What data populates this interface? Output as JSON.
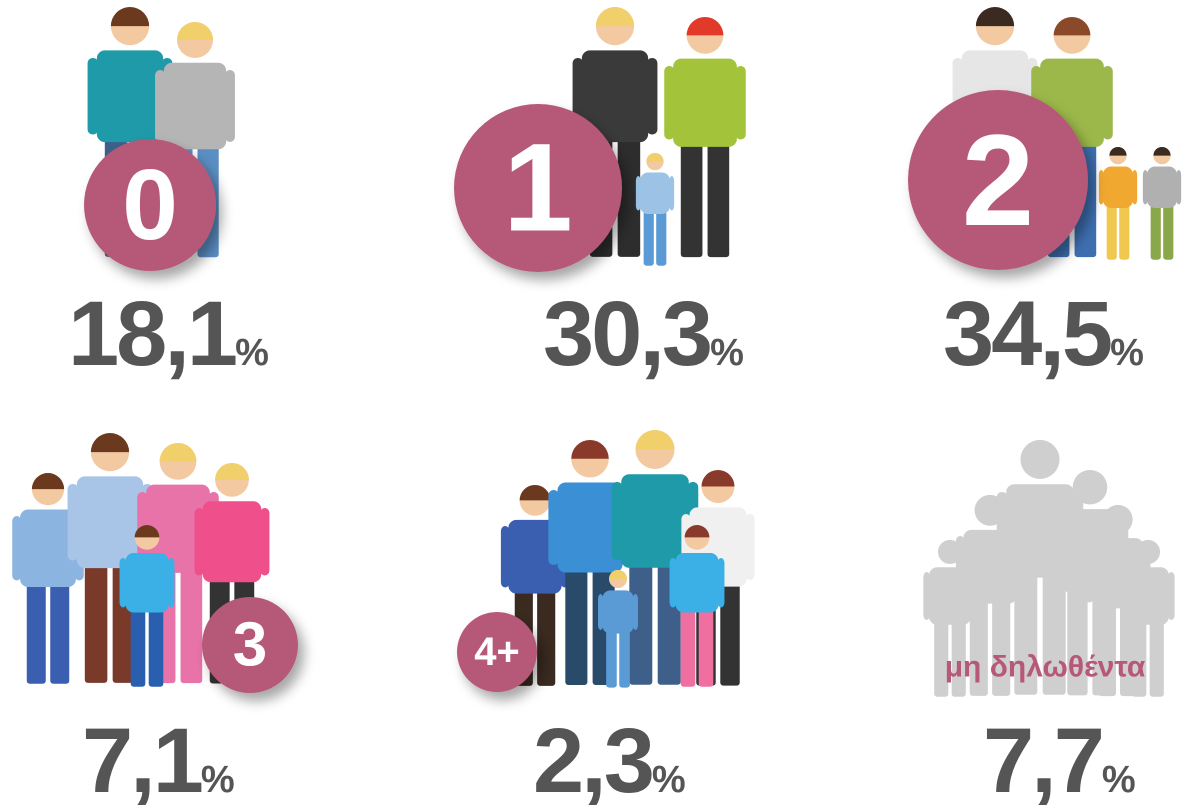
{
  "items": [
    {
      "badge": "0",
      "value": "18,1",
      "unit": "%"
    },
    {
      "badge": "1",
      "value": "30,3",
      "unit": "%"
    },
    {
      "badge": "2",
      "value": "34,5",
      "unit": "%"
    },
    {
      "badge": "3",
      "value": "7,1",
      "unit": "%"
    },
    {
      "badge": "4+",
      "value": "2,3",
      "unit": "%"
    },
    {
      "badge": "μη δηλωθέντα",
      "value": "7,7",
      "unit": "%"
    }
  ]
}
